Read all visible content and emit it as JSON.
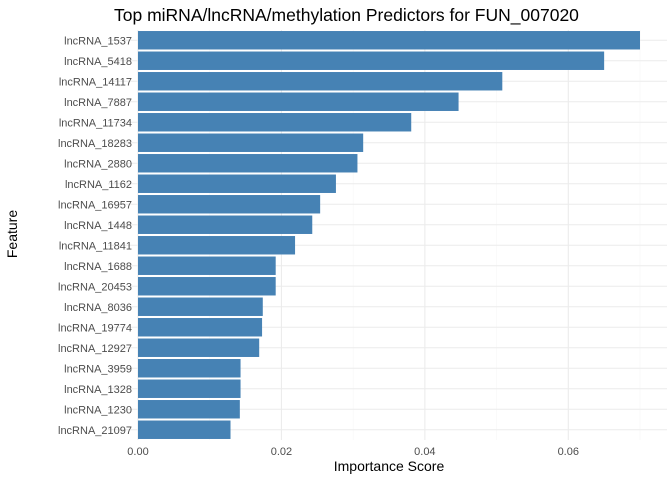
{
  "chart_data": {
    "type": "bar",
    "orientation": "horizontal",
    "title": "Top miRNA/lncRNA/methylation Predictors for FUN_007020",
    "xlabel": "Importance Score",
    "ylabel": "Feature",
    "bar_color": "#4682b4",
    "grid": true,
    "xlim": [
      0,
      0.0735
    ],
    "xticks": [
      0.0,
      0.02,
      0.04,
      0.06
    ],
    "xtick_labels": [
      "0.00",
      "0.02",
      "0.04",
      "0.06"
    ],
    "categories": [
      "lncRNA_1537",
      "lncRNA_5418",
      "lncRNA_14117",
      "lncRNA_7887",
      "lncRNA_11734",
      "lncRNA_18283",
      "lncRNA_2880",
      "lncRNA_1162",
      "lncRNA_16957",
      "lncRNA_1448",
      "lncRNA_11841",
      "lncRNA_1688",
      "lncRNA_20453",
      "lncRNA_8036",
      "lncRNA_19774",
      "lncRNA_12927",
      "lncRNA_3959",
      "lncRNA_1328",
      "lncRNA_1230",
      "lncRNA_21097"
    ],
    "values": [
      0.07,
      0.065,
      0.0508,
      0.0447,
      0.0381,
      0.0314,
      0.0306,
      0.0276,
      0.0254,
      0.0243,
      0.0219,
      0.0192,
      0.0192,
      0.0174,
      0.0173,
      0.0169,
      0.0143,
      0.0143,
      0.0142,
      0.0129
    ]
  }
}
